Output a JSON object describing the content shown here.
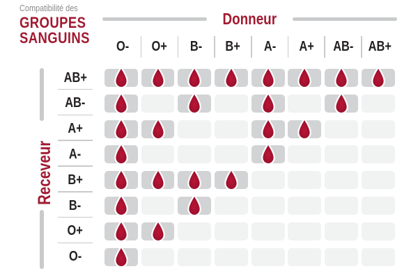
{
  "title": {
    "prefix": "Compatibilité des",
    "line1": "GROUPES",
    "line2": "SANGUINS"
  },
  "axes": {
    "donor_label": "Donneur",
    "receiver_label": "Receveur"
  },
  "icons": {
    "compatible_marker": "blood-drop-icon"
  },
  "colors": {
    "accent_red": "#a11a31",
    "drop_red_center": "#bb1535",
    "drop_red_edge": "#8e0e27",
    "cell_filled_gray": "#d2d3d4",
    "cell_empty_gray": "#f1f2f2",
    "line_gray": "#c9cacb",
    "label_dark": "#242122",
    "subtitle_gray": "#8a8a8a"
  },
  "chart_data": {
    "type": "table",
    "title": "Compatibilité des GROUPES SANGUINS",
    "columns_axis_label": "Donneur",
    "rows_axis_label": "Receveur",
    "columns": [
      "O-",
      "O+",
      "B-",
      "B+",
      "A-",
      "A+",
      "AB-",
      "AB+"
    ],
    "rows": [
      "AB+",
      "AB-",
      "A+",
      "A-",
      "B+",
      "B-",
      "O+",
      "O-"
    ],
    "values": [
      [
        1,
        1,
        1,
        1,
        1,
        1,
        1,
        1
      ],
      [
        1,
        0,
        1,
        0,
        1,
        0,
        1,
        0
      ],
      [
        1,
        1,
        0,
        0,
        1,
        1,
        0,
        0
      ],
      [
        1,
        0,
        0,
        0,
        1,
        0,
        0,
        0
      ],
      [
        1,
        1,
        1,
        1,
        0,
        0,
        0,
        0
      ],
      [
        1,
        0,
        1,
        0,
        0,
        0,
        0,
        0
      ],
      [
        1,
        1,
        0,
        0,
        0,
        0,
        0,
        0
      ],
      [
        1,
        0,
        0,
        0,
        0,
        0,
        0,
        0
      ]
    ],
    "cell_marker": "blood drop shown when donor is compatible with receiver"
  }
}
